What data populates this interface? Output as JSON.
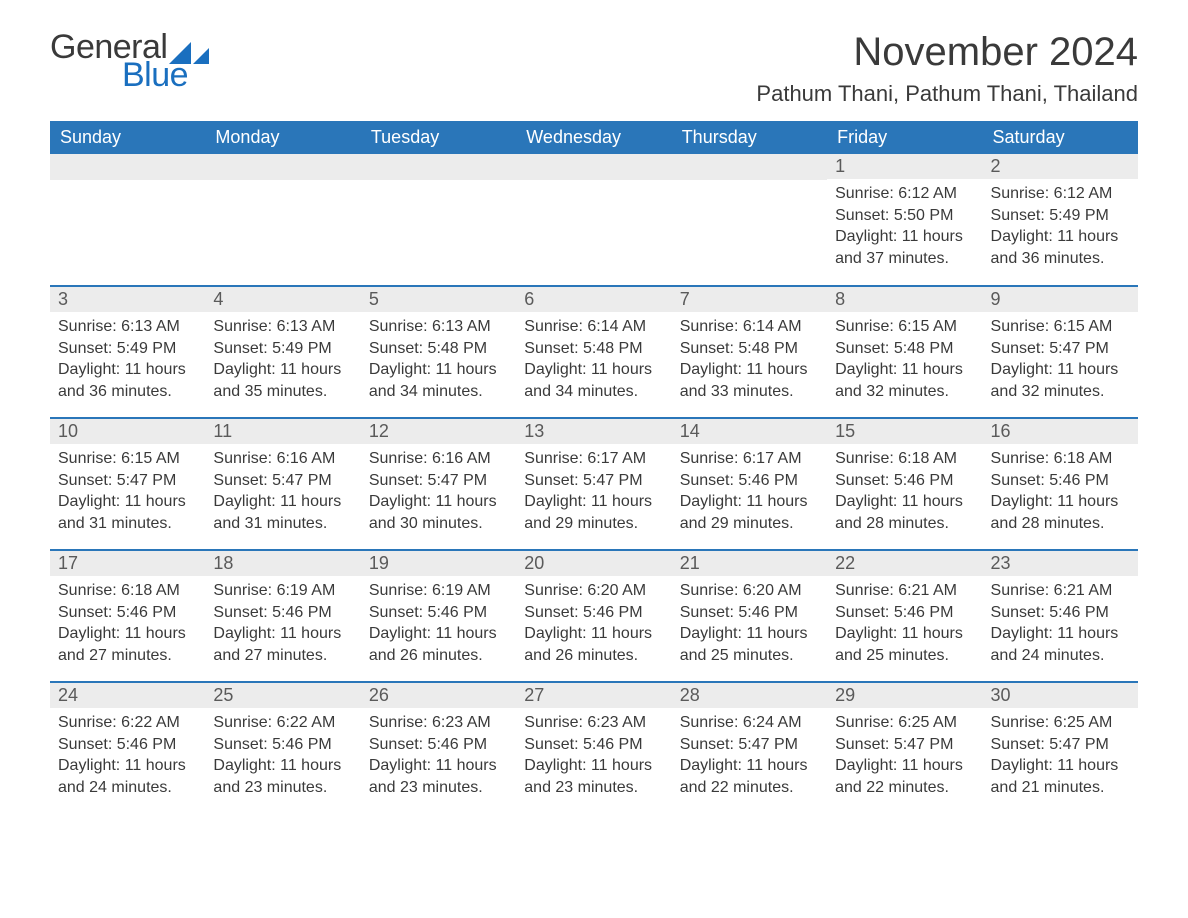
{
  "logo": {
    "text1": "General",
    "text2": "Blue",
    "brand_color": "#1a6fbf"
  },
  "title": "November 2024",
  "subtitle": "Pathum Thani, Pathum Thani, Thailand",
  "theme": {
    "header_bg": "#2a76b9",
    "header_text": "#ffffff",
    "row_divider": "#2a76b9",
    "daynum_bg": "#ececec",
    "body_text": "#3a3a3a"
  },
  "weekdays": [
    "Sunday",
    "Monday",
    "Tuesday",
    "Wednesday",
    "Thursday",
    "Friday",
    "Saturday"
  ],
  "weeks": [
    [
      {
        "day": ""
      },
      {
        "day": ""
      },
      {
        "day": ""
      },
      {
        "day": ""
      },
      {
        "day": ""
      },
      {
        "day": "1",
        "sunrise": "Sunrise: 6:12 AM",
        "sunset": "Sunset: 5:50 PM",
        "daylight": "Daylight: 11 hours and 37 minutes."
      },
      {
        "day": "2",
        "sunrise": "Sunrise: 6:12 AM",
        "sunset": "Sunset: 5:49 PM",
        "daylight": "Daylight: 11 hours and 36 minutes."
      }
    ],
    [
      {
        "day": "3",
        "sunrise": "Sunrise: 6:13 AM",
        "sunset": "Sunset: 5:49 PM",
        "daylight": "Daylight: 11 hours and 36 minutes."
      },
      {
        "day": "4",
        "sunrise": "Sunrise: 6:13 AM",
        "sunset": "Sunset: 5:49 PM",
        "daylight": "Daylight: 11 hours and 35 minutes."
      },
      {
        "day": "5",
        "sunrise": "Sunrise: 6:13 AM",
        "sunset": "Sunset: 5:48 PM",
        "daylight": "Daylight: 11 hours and 34 minutes."
      },
      {
        "day": "6",
        "sunrise": "Sunrise: 6:14 AM",
        "sunset": "Sunset: 5:48 PM",
        "daylight": "Daylight: 11 hours and 34 minutes."
      },
      {
        "day": "7",
        "sunrise": "Sunrise: 6:14 AM",
        "sunset": "Sunset: 5:48 PM",
        "daylight": "Daylight: 11 hours and 33 minutes."
      },
      {
        "day": "8",
        "sunrise": "Sunrise: 6:15 AM",
        "sunset": "Sunset: 5:48 PM",
        "daylight": "Daylight: 11 hours and 32 minutes."
      },
      {
        "day": "9",
        "sunrise": "Sunrise: 6:15 AM",
        "sunset": "Sunset: 5:47 PM",
        "daylight": "Daylight: 11 hours and 32 minutes."
      }
    ],
    [
      {
        "day": "10",
        "sunrise": "Sunrise: 6:15 AM",
        "sunset": "Sunset: 5:47 PM",
        "daylight": "Daylight: 11 hours and 31 minutes."
      },
      {
        "day": "11",
        "sunrise": "Sunrise: 6:16 AM",
        "sunset": "Sunset: 5:47 PM",
        "daylight": "Daylight: 11 hours and 31 minutes."
      },
      {
        "day": "12",
        "sunrise": "Sunrise: 6:16 AM",
        "sunset": "Sunset: 5:47 PM",
        "daylight": "Daylight: 11 hours and 30 minutes."
      },
      {
        "day": "13",
        "sunrise": "Sunrise: 6:17 AM",
        "sunset": "Sunset: 5:47 PM",
        "daylight": "Daylight: 11 hours and 29 minutes."
      },
      {
        "day": "14",
        "sunrise": "Sunrise: 6:17 AM",
        "sunset": "Sunset: 5:46 PM",
        "daylight": "Daylight: 11 hours and 29 minutes."
      },
      {
        "day": "15",
        "sunrise": "Sunrise: 6:18 AM",
        "sunset": "Sunset: 5:46 PM",
        "daylight": "Daylight: 11 hours and 28 minutes."
      },
      {
        "day": "16",
        "sunrise": "Sunrise: 6:18 AM",
        "sunset": "Sunset: 5:46 PM",
        "daylight": "Daylight: 11 hours and 28 minutes."
      }
    ],
    [
      {
        "day": "17",
        "sunrise": "Sunrise: 6:18 AM",
        "sunset": "Sunset: 5:46 PM",
        "daylight": "Daylight: 11 hours and 27 minutes."
      },
      {
        "day": "18",
        "sunrise": "Sunrise: 6:19 AM",
        "sunset": "Sunset: 5:46 PM",
        "daylight": "Daylight: 11 hours and 27 minutes."
      },
      {
        "day": "19",
        "sunrise": "Sunrise: 6:19 AM",
        "sunset": "Sunset: 5:46 PM",
        "daylight": "Daylight: 11 hours and 26 minutes."
      },
      {
        "day": "20",
        "sunrise": "Sunrise: 6:20 AM",
        "sunset": "Sunset: 5:46 PM",
        "daylight": "Daylight: 11 hours and 26 minutes."
      },
      {
        "day": "21",
        "sunrise": "Sunrise: 6:20 AM",
        "sunset": "Sunset: 5:46 PM",
        "daylight": "Daylight: 11 hours and 25 minutes."
      },
      {
        "day": "22",
        "sunrise": "Sunrise: 6:21 AM",
        "sunset": "Sunset: 5:46 PM",
        "daylight": "Daylight: 11 hours and 25 minutes."
      },
      {
        "day": "23",
        "sunrise": "Sunrise: 6:21 AM",
        "sunset": "Sunset: 5:46 PM",
        "daylight": "Daylight: 11 hours and 24 minutes."
      }
    ],
    [
      {
        "day": "24",
        "sunrise": "Sunrise: 6:22 AM",
        "sunset": "Sunset: 5:46 PM",
        "daylight": "Daylight: 11 hours and 24 minutes."
      },
      {
        "day": "25",
        "sunrise": "Sunrise: 6:22 AM",
        "sunset": "Sunset: 5:46 PM",
        "daylight": "Daylight: 11 hours and 23 minutes."
      },
      {
        "day": "26",
        "sunrise": "Sunrise: 6:23 AM",
        "sunset": "Sunset: 5:46 PM",
        "daylight": "Daylight: 11 hours and 23 minutes."
      },
      {
        "day": "27",
        "sunrise": "Sunrise: 6:23 AM",
        "sunset": "Sunset: 5:46 PM",
        "daylight": "Daylight: 11 hours and 23 minutes."
      },
      {
        "day": "28",
        "sunrise": "Sunrise: 6:24 AM",
        "sunset": "Sunset: 5:47 PM",
        "daylight": "Daylight: 11 hours and 22 minutes."
      },
      {
        "day": "29",
        "sunrise": "Sunrise: 6:25 AM",
        "sunset": "Sunset: 5:47 PM",
        "daylight": "Daylight: 11 hours and 22 minutes."
      },
      {
        "day": "30",
        "sunrise": "Sunrise: 6:25 AM",
        "sunset": "Sunset: 5:47 PM",
        "daylight": "Daylight: 11 hours and 21 minutes."
      }
    ]
  ]
}
